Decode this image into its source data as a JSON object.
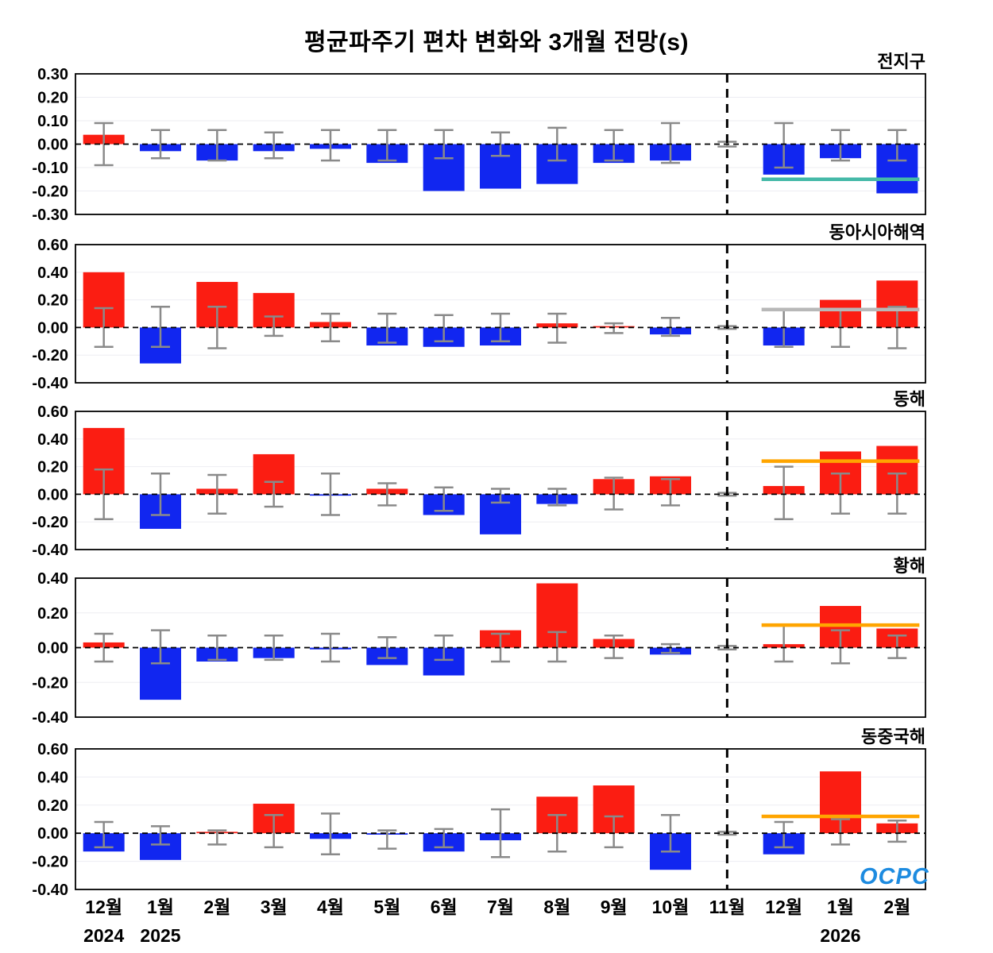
{
  "title_bar": {
    "app_title": "평균파주기 편차 변화와 3개월 전망(s)"
  },
  "logo": {
    "text": "OCPC"
  },
  "colors": {
    "bar_positive": "#fb1d12",
    "bar_negative": "#1126f0",
    "error_bar": "#8a8a8a",
    "zero_line": "#000000",
    "divider": "#000000",
    "grid": "#ededf2",
    "axis_box": "#000000"
  },
  "chart_data": {
    "type": "bar",
    "title": "평균파주기 편차 변화와 3개월 전망(s)",
    "categories": [
      "12월",
      "1월",
      "2월",
      "3월",
      "4월",
      "5월",
      "6월",
      "7월",
      "8월",
      "9월",
      "10월",
      "11월",
      "12월",
      "1월",
      "2월"
    ],
    "year_labels": [
      {
        "label": "2024",
        "index": 0
      },
      {
        "label": "2025",
        "index": 1
      },
      {
        "label": "2026",
        "index": 13
      }
    ],
    "forecast_divider_index": 11,
    "forecast_span": {
      "from": 12,
      "to": 14
    },
    "legend_position": "none",
    "grid": true,
    "panels": [
      {
        "label": "전지구",
        "ylim": [
          -0.3,
          0.3
        ],
        "yticks": [
          0.3,
          0.2,
          0.1,
          0.0,
          -0.1,
          -0.2,
          -0.3
        ],
        "values": [
          0.04,
          -0.03,
          -0.07,
          -0.03,
          -0.02,
          -0.08,
          -0.2,
          -0.19,
          -0.17,
          -0.08,
          -0.07,
          0.0,
          -0.13,
          -0.06,
          -0.21
        ],
        "err_hi": [
          0.09,
          0.06,
          0.06,
          0.05,
          0.06,
          0.06,
          0.06,
          0.05,
          0.07,
          0.06,
          0.09,
          0.01,
          0.09,
          0.06,
          0.06
        ],
        "err_lo": [
          -0.09,
          -0.06,
          -0.07,
          -0.06,
          -0.07,
          -0.07,
          -0.06,
          -0.05,
          -0.07,
          -0.07,
          -0.08,
          -0.01,
          -0.1,
          -0.07,
          -0.07
        ],
        "forecast_line": {
          "y": -0.15,
          "color": "#45b9a8"
        }
      },
      {
        "label": "동아시아해역",
        "ylim": [
          -0.4,
          0.6
        ],
        "yticks": [
          0.6,
          0.4,
          0.2,
          0.0,
          -0.2,
          -0.4
        ],
        "values": [
          0.4,
          -0.26,
          0.33,
          0.25,
          0.04,
          -0.13,
          -0.14,
          -0.13,
          0.03,
          0.01,
          -0.05,
          0.0,
          -0.13,
          0.2,
          0.34
        ],
        "err_hi": [
          0.14,
          0.15,
          0.15,
          0.08,
          0.1,
          0.1,
          0.09,
          0.1,
          0.1,
          0.03,
          0.07,
          0.01,
          0.13,
          0.13,
          0.15
        ],
        "err_lo": [
          -0.14,
          -0.14,
          -0.15,
          -0.06,
          -0.1,
          -0.11,
          -0.1,
          -0.1,
          -0.11,
          -0.04,
          -0.06,
          -0.01,
          -0.14,
          -0.14,
          -0.15
        ],
        "forecast_line": {
          "y": 0.13,
          "color": "#b8b8b8"
        }
      },
      {
        "label": "동해",
        "ylim": [
          -0.4,
          0.6
        ],
        "yticks": [
          0.6,
          0.4,
          0.2,
          0.0,
          -0.2,
          -0.4
        ],
        "values": [
          0.48,
          -0.25,
          0.04,
          0.29,
          -0.01,
          0.04,
          -0.15,
          -0.29,
          -0.07,
          0.11,
          0.13,
          0.0,
          0.06,
          0.31,
          0.35
        ],
        "err_hi": [
          0.18,
          0.15,
          0.14,
          0.09,
          0.15,
          0.08,
          0.05,
          0.04,
          0.04,
          0.12,
          0.11,
          0.01,
          0.2,
          0.15,
          0.15
        ],
        "err_lo": [
          -0.18,
          -0.15,
          -0.14,
          -0.09,
          -0.15,
          -0.08,
          -0.12,
          -0.06,
          -0.08,
          -0.11,
          -0.08,
          -0.01,
          -0.18,
          -0.14,
          -0.14
        ],
        "forecast_line": {
          "y": 0.24,
          "color": "#ffa500"
        }
      },
      {
        "label": "황해",
        "ylim": [
          -0.4,
          0.4
        ],
        "yticks": [
          0.4,
          0.2,
          0.0,
          -0.2,
          -0.4
        ],
        "values": [
          0.03,
          -0.3,
          -0.08,
          -0.06,
          -0.01,
          -0.1,
          -0.16,
          0.1,
          0.37,
          0.05,
          -0.04,
          0.0,
          0.02,
          0.24,
          0.11
        ],
        "err_hi": [
          0.08,
          0.1,
          0.07,
          0.07,
          0.08,
          0.06,
          0.07,
          0.08,
          0.09,
          0.07,
          0.02,
          0.01,
          0.13,
          0.1,
          0.07
        ],
        "err_lo": [
          -0.08,
          -0.09,
          -0.07,
          -0.07,
          -0.08,
          -0.06,
          -0.07,
          -0.08,
          -0.08,
          -0.06,
          -0.03,
          -0.01,
          -0.08,
          -0.09,
          -0.06
        ],
        "forecast_line": {
          "y": 0.13,
          "color": "#ffa500"
        }
      },
      {
        "label": "동중국해",
        "ylim": [
          -0.4,
          0.6
        ],
        "yticks": [
          0.6,
          0.4,
          0.2,
          0.0,
          -0.2,
          -0.4
        ],
        "values": [
          -0.13,
          -0.19,
          0.01,
          0.21,
          -0.04,
          -0.01,
          -0.13,
          -0.05,
          0.26,
          0.34,
          -0.26,
          0.0,
          -0.15,
          0.44,
          0.07
        ],
        "err_hi": [
          0.08,
          0.05,
          0.02,
          0.13,
          0.14,
          0.02,
          0.03,
          0.17,
          0.13,
          0.12,
          0.13,
          0.01,
          0.08,
          0.1,
          0.09
        ],
        "err_lo": [
          -0.1,
          -0.08,
          -0.08,
          -0.1,
          -0.15,
          -0.11,
          -0.1,
          -0.17,
          -0.13,
          -0.1,
          -0.13,
          -0.01,
          -0.1,
          -0.08,
          -0.06
        ],
        "forecast_line": {
          "y": 0.12,
          "color": "#ffa500"
        }
      }
    ]
  }
}
